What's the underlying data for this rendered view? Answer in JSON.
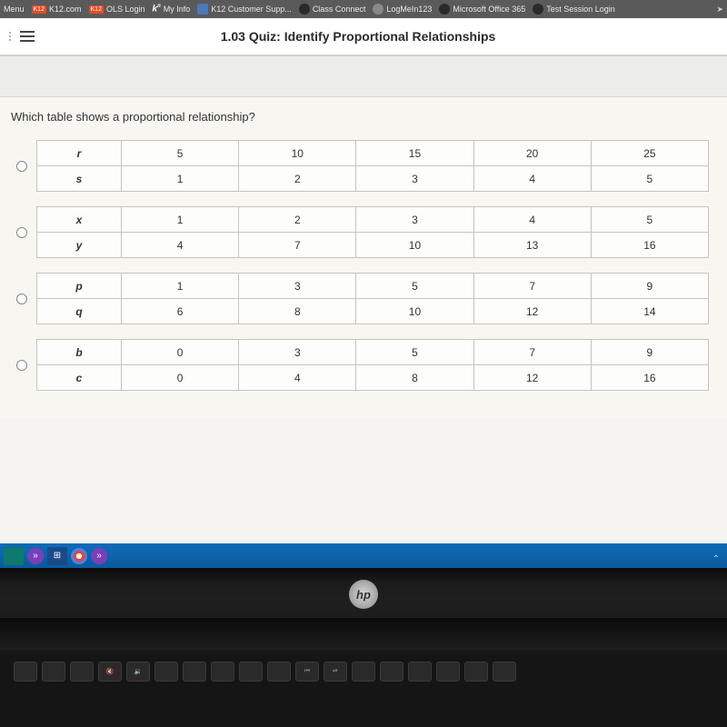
{
  "bookmarks": [
    {
      "label": "Menu",
      "iconColor": ""
    },
    {
      "label": "K12.com",
      "badge": "K12"
    },
    {
      "label": "OLS Login",
      "badge": "K12"
    },
    {
      "label": "My Info",
      "iconClass": ""
    },
    {
      "label": "K12 Customer Supp...",
      "iconClass": "blue"
    },
    {
      "label": "Class Connect",
      "iconClass": "dark"
    },
    {
      "label": "LogMeIn123",
      "iconClass": "plus"
    },
    {
      "label": "Microsoft Office 365",
      "iconClass": "dark"
    },
    {
      "label": "Test Session Login",
      "iconClass": "dark"
    }
  ],
  "quiz": {
    "title": "1.03 Quiz: Identify Proportional Relationships",
    "question": "Which table shows a proportional relationship?"
  },
  "options": [
    {
      "rows": [
        {
          "var": "r",
          "vals": [
            "5",
            "10",
            "15",
            "20",
            "25"
          ]
        },
        {
          "var": "s",
          "vals": [
            "1",
            "2",
            "3",
            "4",
            "5"
          ]
        }
      ]
    },
    {
      "rows": [
        {
          "var": "x",
          "vals": [
            "1",
            "2",
            "3",
            "4",
            "5"
          ]
        },
        {
          "var": "y",
          "vals": [
            "4",
            "7",
            "10",
            "13",
            "16"
          ]
        }
      ]
    },
    {
      "rows": [
        {
          "var": "p",
          "vals": [
            "1",
            "3",
            "5",
            "7",
            "9"
          ]
        },
        {
          "var": "q",
          "vals": [
            "6",
            "8",
            "10",
            "12",
            "14"
          ]
        }
      ]
    },
    {
      "rows": [
        {
          "var": "b",
          "vals": [
            "0",
            "3",
            "5",
            "7",
            "9"
          ]
        },
        {
          "var": "c",
          "vals": [
            "0",
            "4",
            "8",
            "12",
            "16"
          ]
        }
      ]
    }
  ],
  "logo": "hp"
}
